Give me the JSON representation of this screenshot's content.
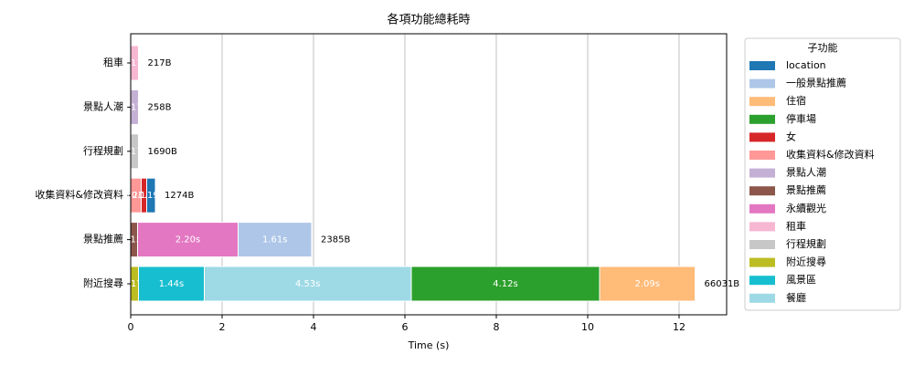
{
  "chart_data": {
    "type": "stacked-barh",
    "title": "各項功能總耗時",
    "xlabel": "Time (s)",
    "xlim": [
      0,
      13.04
    ],
    "xticks": [
      0,
      2,
      4,
      6,
      8,
      10,
      12
    ],
    "grid": true,
    "legend": {
      "title": "子功能",
      "loc": "upper right outside"
    },
    "series": [
      {
        "name": "location",
        "color": "#1f77b4"
      },
      {
        "name": "一般景點推薦",
        "color": "#aec7e8"
      },
      {
        "name": "住宿",
        "color": "#ffbb78"
      },
      {
        "name": "停車場",
        "color": "#2ca02c"
      },
      {
        "name": "女",
        "color": "#d62728"
      },
      {
        "name": "收集資料&修改資料",
        "color": "#ff9896"
      },
      {
        "name": "景點人潮",
        "color": "#c5b0d5"
      },
      {
        "name": "景點推薦",
        "color": "#8c564b"
      },
      {
        "name": "永續觀光",
        "color": "#e377c2"
      },
      {
        "name": "租車",
        "color": "#f7b6d2"
      },
      {
        "name": "行程規劃",
        "color": "#c7c7c7"
      },
      {
        "name": "附近搜尋",
        "color": "#bcbd22"
      },
      {
        "name": "風景區",
        "color": "#17becf"
      },
      {
        "name": "餐廳",
        "color": "#9edae5"
      }
    ],
    "bars": [
      {
        "category": "租車",
        "annotation": "217B",
        "segments": [
          {
            "series": "租車",
            "value": 0.17,
            "value_label": "0.17s"
          }
        ]
      },
      {
        "category": "景點人潮",
        "annotation": "258B",
        "segments": [
          {
            "series": "景點人潮",
            "value": 0.17,
            "value_label": "0.17s"
          }
        ]
      },
      {
        "category": "行程規劃",
        "annotation": "1690B",
        "segments": [
          {
            "series": "行程規劃",
            "value": 0.17,
            "value_label": "0.17s"
          }
        ]
      },
      {
        "category": "收集資料&修改資料",
        "annotation": "1274B",
        "segments": [
          {
            "series": "收集資料&修改資料",
            "value": 0.23,
            "value_label": "0.23s"
          },
          {
            "series": "女",
            "value": 0.12,
            "value_label": "0.12s"
          },
          {
            "series": "location",
            "value": 0.19,
            "value_label": "0.19s"
          }
        ]
      },
      {
        "category": "景點推薦",
        "annotation": "2385B",
        "segments": [
          {
            "series": "景點推薦",
            "value": 0.15,
            "value_label": "0.15s"
          },
          {
            "series": "永續觀光",
            "value": 2.2,
            "value_label": "2.20s"
          },
          {
            "series": "一般景點推薦",
            "value": 1.61,
            "value_label": "1.61s"
          }
        ]
      },
      {
        "category": "附近搜尋",
        "annotation": "66031B",
        "segments": [
          {
            "series": "附近搜尋",
            "value": 0.17,
            "value_label": "0.17s"
          },
          {
            "series": "風景區",
            "value": 1.44,
            "value_label": "1.44s"
          },
          {
            "series": "餐廳",
            "value": 4.53,
            "value_label": "4.53s"
          },
          {
            "series": "停車場",
            "value": 4.12,
            "value_label": "4.12s"
          },
          {
            "series": "住宿",
            "value": 2.09,
            "value_label": "2.09s"
          }
        ]
      }
    ]
  }
}
